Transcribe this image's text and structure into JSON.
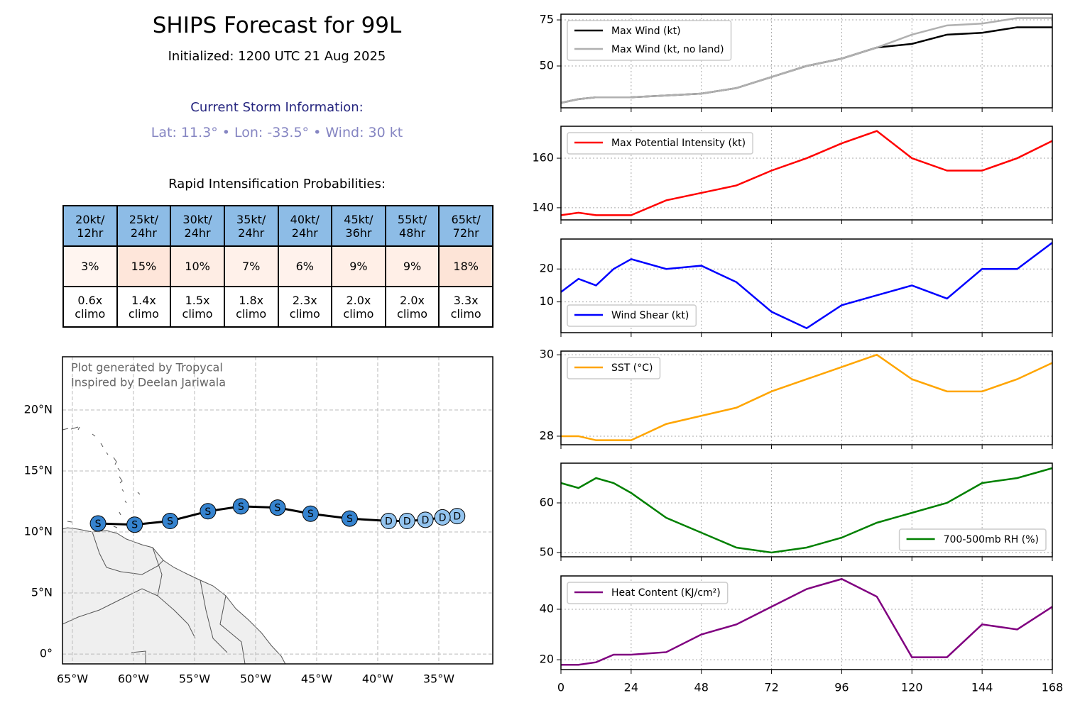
{
  "title": "SHIPS Forecast for 99L",
  "subtitle": "Initialized: 1200 UTC 21 Aug 2025",
  "storm_heading": "Current Storm Information:",
  "storm_info": "Lat: 11.3° • Lon: -33.5° • Wind: 30 kt",
  "ri_heading": "Rapid Intensification Probabilities:",
  "table": {
    "header": [
      "20kt/\n12hr",
      "25kt/\n24hr",
      "30kt/\n24hr",
      "35kt/\n24hr",
      "40kt/\n24hr",
      "45kt/\n36hr",
      "55kt/\n48hr",
      "65kt/\n72hr"
    ],
    "probabilities": [
      "3%",
      "15%",
      "10%",
      "7%",
      "6%",
      "9%",
      "9%",
      "18%"
    ],
    "probability_colors": [
      "#fff5f0",
      "#fee6da",
      "#feede4",
      "#fff1ea",
      "#fff2ec",
      "#ffefe7",
      "#ffefe7",
      "#fde4d7"
    ],
    "climo": [
      "0.6x\nclimo",
      "1.4x\nclimo",
      "1.5x\nclimo",
      "1.8x\nclimo",
      "2.3x\nclimo",
      "2.0x\nclimo",
      "2.0x\nclimo",
      "3.3x\nclimo"
    ],
    "header_color": "#8dbce6"
  },
  "chart_data": [
    {
      "type": "map",
      "annotations": [
        "Plot generated by Tropycal",
        "Inspired by Deelan Jariwala"
      ],
      "xlim": [
        -65.81,
        -30.58
      ],
      "ylim": [
        -0.81,
        24.36
      ],
      "xticks": [
        {
          "value": -65,
          "label": "65°W"
        },
        {
          "value": -60,
          "label": "60°W"
        },
        {
          "value": -55,
          "label": "55°W"
        },
        {
          "value": -50,
          "label": "50°W"
        },
        {
          "value": -45,
          "label": "45°W"
        },
        {
          "value": -40,
          "label": "40°W"
        },
        {
          "value": -35,
          "label": "35°W"
        }
      ],
      "yticks": [
        {
          "value": 0,
          "label": "0°"
        },
        {
          "value": 5,
          "label": "5°N"
        },
        {
          "value": 10,
          "label": "10°N"
        },
        {
          "value": 15,
          "label": "15°N"
        },
        {
          "value": 20,
          "label": "20°N"
        }
      ],
      "grid": true,
      "track": {
        "lon": [
          -33.5,
          -34.7,
          -36.1,
          -37.6,
          -39.1,
          -42.3,
          -45.5,
          -48.2,
          -51.2,
          -53.9,
          -57.0,
          -59.9,
          -62.9
        ],
        "lat": [
          11.3,
          11.2,
          11.0,
          10.9,
          10.9,
          11.1,
          11.5,
          12.0,
          12.1,
          11.7,
          10.9,
          10.6,
          10.7
        ],
        "labels": [
          "D",
          "D",
          "D",
          "D",
          "D",
          "S",
          "S",
          "S",
          "S",
          "S",
          "S",
          "S",
          "S"
        ],
        "colors": [
          "#93c4ef",
          "#93c4ef",
          "#93c4ef",
          "#93c4ef",
          "#93c4ef",
          "#3583cf",
          "#3583cf",
          "#3583cf",
          "#3583cf",
          "#3583cf",
          "#3583cf",
          "#3583cf",
          "#3583cf"
        ],
        "line_color": "#000000"
      }
    },
    {
      "type": "line",
      "legend": "upper left",
      "grid": true,
      "x": [
        0,
        6,
        12,
        18,
        24,
        36,
        48,
        60,
        72,
        84,
        96,
        108,
        120,
        132,
        144,
        156,
        168
      ],
      "xlim": [
        0,
        168
      ],
      "xticks": [
        0,
        24,
        48,
        72,
        96,
        120,
        144,
        168
      ],
      "ylim": [
        27.3,
        78.1
      ],
      "yticks": [
        50,
        75
      ],
      "series": [
        {
          "name": "Max Wind (kt)",
          "color": "#000000",
          "values": [
            30,
            32,
            33,
            33,
            33,
            34,
            35,
            38,
            44,
            50,
            54,
            60,
            62,
            67,
            68,
            71,
            71
          ]
        },
        {
          "name": "Max Wind (kt, no land)",
          "color": "#b0b0b0",
          "values": [
            30,
            32,
            33,
            33,
            33,
            34,
            35,
            38,
            44,
            50,
            54,
            60,
            67,
            72,
            73,
            76,
            76
          ]
        }
      ]
    },
    {
      "type": "line",
      "legend": "upper left",
      "grid": true,
      "x": [
        0,
        6,
        12,
        18,
        24,
        36,
        48,
        60,
        72,
        84,
        96,
        108,
        120,
        132,
        144,
        156,
        168
      ],
      "xlim": [
        0,
        168
      ],
      "xticks": [
        0,
        24,
        48,
        72,
        96,
        120,
        144,
        168
      ],
      "ylim": [
        135.1,
        172.9
      ],
      "yticks": [
        140,
        160
      ],
      "series": [
        {
          "name": "Max Potential Intensity (kt)",
          "color": "#ff0000",
          "values": [
            137,
            138,
            137,
            137,
            137,
            143,
            146,
            149,
            155,
            160,
            166,
            171,
            160,
            155,
            155,
            160,
            167
          ]
        }
      ]
    },
    {
      "type": "line",
      "legend": "lower left",
      "grid": true,
      "x": [
        0,
        6,
        12,
        18,
        24,
        36,
        48,
        60,
        72,
        84,
        96,
        108,
        120,
        132,
        144,
        156,
        168
      ],
      "xlim": [
        0,
        168
      ],
      "xticks": [
        0,
        24,
        48,
        72,
        96,
        120,
        144,
        168
      ],
      "ylim": [
        0.65,
        29.1
      ],
      "yticks": [
        10,
        20
      ],
      "series": [
        {
          "name": "Wind Shear (kt)",
          "color": "#0000ff",
          "values": [
            13,
            17,
            15,
            20,
            23,
            20,
            21,
            16,
            7,
            2,
            9,
            12,
            15,
            11,
            20,
            20,
            28
          ]
        }
      ]
    },
    {
      "type": "line",
      "legend": "upper left",
      "grid": true,
      "x": [
        0,
        6,
        12,
        18,
        24,
        36,
        48,
        60,
        72,
        84,
        96,
        108,
        120,
        132,
        144,
        156,
        168
      ],
      "xlim": [
        0,
        168
      ],
      "xticks": [
        0,
        24,
        48,
        72,
        96,
        120,
        144,
        168
      ],
      "ylim": [
        27.79,
        30.09
      ],
      "yticks": [
        28,
        30
      ],
      "series": [
        {
          "name": "SST (°C)",
          "color": "#ffa500",
          "values": [
            28.0,
            28.0,
            27.9,
            27.9,
            27.9,
            28.3,
            28.5,
            28.7,
            29.1,
            29.4,
            29.7,
            30.0,
            29.4,
            29.1,
            29.1,
            29.4,
            29.8
          ]
        }
      ]
    },
    {
      "type": "line",
      "legend": "lower right",
      "grid": true,
      "x": [
        0,
        6,
        12,
        18,
        24,
        36,
        48,
        60,
        72,
        84,
        96,
        108,
        120,
        132,
        144,
        156,
        168
      ],
      "xlim": [
        0,
        168
      ],
      "xticks": [
        0,
        24,
        48,
        72,
        96,
        120,
        144,
        168
      ],
      "ylim": [
        49.14,
        68
      ],
      "yticks": [
        50,
        60
      ],
      "series": [
        {
          "name": "700-500mb RH (%)",
          "color": "#008000",
          "values": [
            64,
            63,
            65,
            64,
            62,
            57,
            54,
            51,
            50,
            51,
            53,
            56,
            58,
            60,
            64,
            65,
            67
          ]
        }
      ]
    },
    {
      "type": "line",
      "legend": "upper left",
      "grid": true,
      "x": [
        0,
        6,
        12,
        18,
        24,
        36,
        48,
        60,
        72,
        84,
        96,
        108,
        120,
        132,
        144,
        156,
        168
      ],
      "xlim": [
        0,
        168
      ],
      "xticks": [
        0,
        24,
        48,
        72,
        96,
        120,
        144,
        168
      ],
      "ylim": [
        16.1,
        53.2
      ],
      "yticks": [
        20,
        40
      ],
      "series": [
        {
          "name": "Heat Content (KJ/cm²)",
          "color": "#800080",
          "values": [
            18,
            18,
            19,
            22,
            22,
            23,
            30,
            34,
            41,
            48,
            52,
            45,
            21,
            21,
            34,
            32,
            41
          ]
        }
      ]
    }
  ]
}
